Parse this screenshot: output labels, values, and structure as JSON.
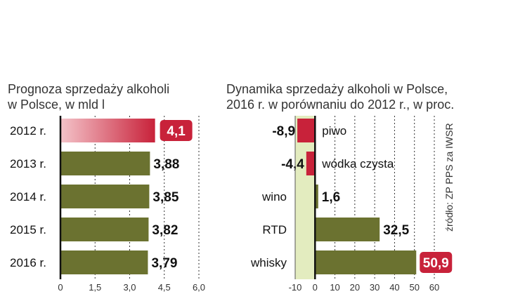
{
  "source": "źródło: ZP PPS za IWSR",
  "chart_data": [
    {
      "type": "bar",
      "orientation": "horizontal",
      "title": "Prognoza sprzedaży alkoholi\nw Polsce, w mld l",
      "title_lines": [
        "Prognoza sprzedaży alkoholi",
        "w Polsce, w mld l"
      ],
      "categories": [
        "2012 r.",
        "2013 r.",
        "2014 r.",
        "2015 r.",
        "2016 r."
      ],
      "values": [
        4.1,
        3.88,
        3.85,
        3.82,
        3.79
      ],
      "value_labels": [
        "4,1",
        "3,88",
        "3,85",
        "3,82",
        "3,79"
      ],
      "highlight_index": 0,
      "xlim": [
        0,
        6.0
      ],
      "xticks": [
        0,
        1.5,
        3.0,
        4.5,
        6.0
      ],
      "xtick_labels": [
        "0",
        "1,5",
        "3,0",
        "4,5",
        "6,0"
      ],
      "colors": {
        "bar": "#6b7230",
        "highlight": "#c8223a",
        "label_box": "#c8223a"
      }
    },
    {
      "type": "bar",
      "orientation": "horizontal",
      "title": "Dynamika sprzedaży alkoholi w Polsce,\n2016 r. w porównaniu do 2012 r., w proc.",
      "title_lines": [
        "Dynamika sprzedaży alkoholi w Polsce,",
        "2016 r. w porównaniu do 2012 r., w proc."
      ],
      "categories": [
        "piwo",
        "wódka czysta",
        "wino",
        "RTD",
        "whisky"
      ],
      "values": [
        -8.9,
        -4.4,
        1.6,
        32.5,
        50.9
      ],
      "value_labels": [
        "-8,9",
        "-4,4",
        "1,6",
        "32,5",
        "50,9"
      ],
      "highlight_index": 4,
      "xlim": [
        -10,
        60
      ],
      "xticks": [
        -10,
        0,
        10,
        20,
        30,
        40,
        50,
        60
      ],
      "xtick_labels": [
        "-10",
        "0",
        "10",
        "20",
        "30",
        "40",
        "50",
        "60"
      ],
      "colors": {
        "positive": "#6b7230",
        "negative": "#c8223a",
        "label_box": "#c8223a",
        "negative_zone": "#e3ecbf"
      }
    }
  ]
}
